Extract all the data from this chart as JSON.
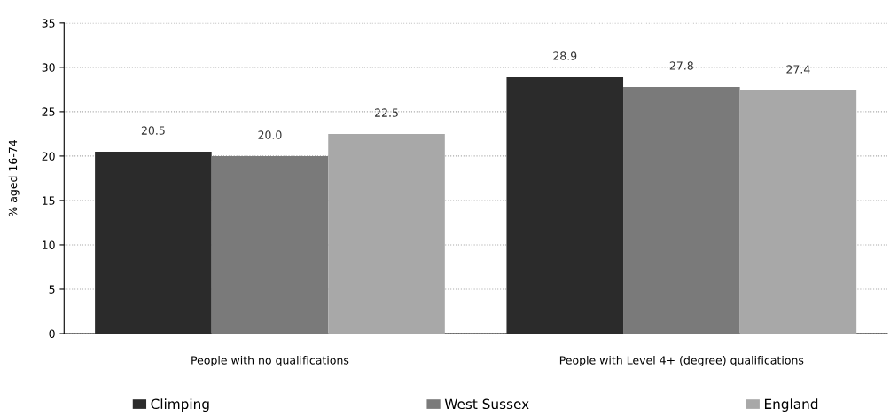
{
  "chart_data": {
    "type": "bar",
    "ylabel": "% aged 16-74",
    "categories": [
      "People with no qualifications",
      "People with Level 4+ (degree) qualifications"
    ],
    "series": [
      {
        "name": "Climping",
        "color": "#2b2b2b",
        "values": [
          20.5,
          28.9
        ]
      },
      {
        "name": "West Sussex",
        "color": "#7a7a7a",
        "values": [
          20.0,
          27.8
        ],
        "value_labels": [
          "20.0",
          "27.8"
        ]
      },
      {
        "name": "England",
        "color": "#a8a8a8",
        "values": [
          22.5,
          27.4
        ]
      }
    ],
    "ylim": [
      0,
      35
    ],
    "yticks": [
      0,
      5,
      10,
      15,
      20,
      25,
      30,
      35
    ],
    "grid": "y",
    "legend": "bottom",
    "data_labels": true
  }
}
